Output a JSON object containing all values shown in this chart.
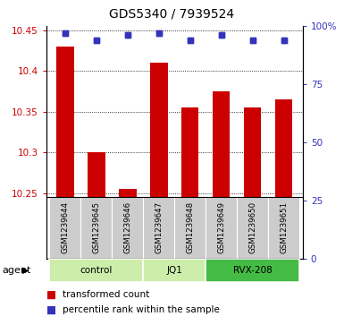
{
  "title": "GDS5340 / 7939524",
  "samples": [
    "GSM1239644",
    "GSM1239645",
    "GSM1239646",
    "GSM1239647",
    "GSM1239648",
    "GSM1239649",
    "GSM1239650",
    "GSM1239651"
  ],
  "red_values": [
    10.43,
    10.3,
    10.255,
    10.41,
    10.355,
    10.375,
    10.355,
    10.365
  ],
  "blue_values": [
    97,
    94,
    96,
    97,
    94,
    96,
    94,
    94
  ],
  "ylim_left": [
    10.245,
    10.455
  ],
  "ylim_right": [
    0,
    100
  ],
  "yticks_left": [
    10.25,
    10.3,
    10.35,
    10.4,
    10.45
  ],
  "yticks_right": [
    0,
    25,
    50,
    75,
    100
  ],
  "yticklabels_right": [
    "0",
    "25",
    "50",
    "75",
    "100%"
  ],
  "red_color": "#cc0000",
  "blue_color": "#3333bb",
  "bar_width": 0.55,
  "background_color": "#ffffff",
  "plot_bg": "#ffffff",
  "label_area_bg": "#cccccc",
  "group_info": [
    {
      "label": "control",
      "start": 0,
      "end": 2,
      "color": "#cceeaa"
    },
    {
      "label": "JQ1",
      "start": 3,
      "end": 4,
      "color": "#cceeaa"
    },
    {
      "label": "RVX-208",
      "start": 5,
      "end": 7,
      "color": "#44bb44"
    }
  ],
  "legend_red": "transformed count",
  "legend_blue": "percentile rank within the sample",
  "agent_label": "agent",
  "title_fontsize": 10,
  "tick_fontsize": 7.5,
  "sample_fontsize": 6.2,
  "group_fontsize": 7.5,
  "legend_fontsize": 7.5
}
